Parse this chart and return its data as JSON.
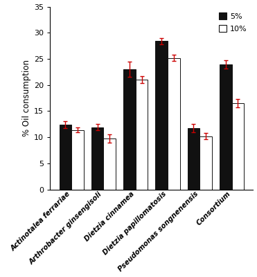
{
  "categories": [
    "Actinotalea ferrariae",
    "Arthrobacter ginsengisoli",
    "Dietzia cinnamea",
    "Dietzia papillomatosis",
    "Pseudomonas songnenensis",
    "Consortium"
  ],
  "values_5pct": [
    12.4,
    11.9,
    23.0,
    28.4,
    11.7,
    24.0
  ],
  "values_10pct": [
    11.4,
    9.7,
    21.0,
    25.2,
    10.2,
    16.5
  ],
  "errors_5pct": [
    0.7,
    0.6,
    1.5,
    0.6,
    0.8,
    0.8
  ],
  "errors_10pct": [
    0.5,
    0.8,
    0.7,
    0.6,
    0.6,
    0.8
  ],
  "bar_color_5pct": "#111111",
  "bar_color_10pct": "#ffffff",
  "bar_edgecolor": "#111111",
  "error_color": "#cc0000",
  "ylabel": "% Oil consumption",
  "ylim": [
    0,
    35
  ],
  "yticks": [
    0,
    5,
    10,
    15,
    20,
    25,
    30,
    35
  ],
  "legend_labels": [
    "5%",
    "10%"
  ],
  "bar_width": 0.38,
  "figsize": [
    3.71,
    4.0
  ],
  "dpi": 100
}
